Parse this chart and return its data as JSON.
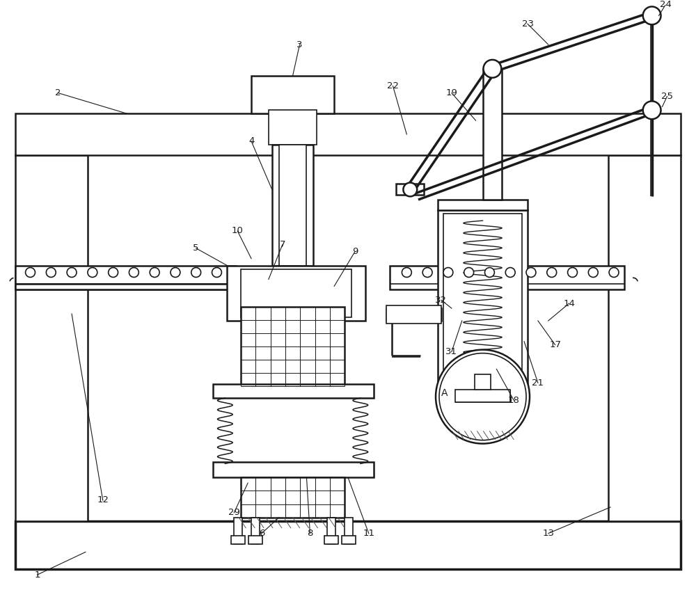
{
  "bg_color": "#ffffff",
  "line_color": "#1a1a1a",
  "label_color": "#1a1a1a",
  "fig_width": 10.0,
  "fig_height": 8.48,
  "dpi": 100
}
